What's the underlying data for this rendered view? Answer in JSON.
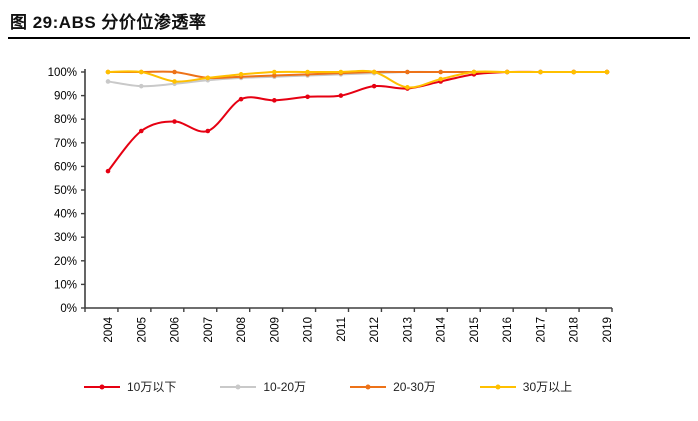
{
  "figure": {
    "title": "图 29:ABS 分价位渗透率"
  },
  "chart_data": {
    "type": "line",
    "title": "ABS 分价位渗透率",
    "categories": [
      "2004",
      "2005",
      "2006",
      "2007",
      "2008",
      "2009",
      "2010",
      "2011",
      "2012",
      "2013",
      "2014",
      "2015",
      "2016",
      "2017",
      "2018",
      "2019"
    ],
    "series": [
      {
        "name": "10万以下",
        "color": "#e60012",
        "values": [
          58,
          75,
          79,
          75,
          88.5,
          88,
          89.5,
          90,
          94,
          93,
          96,
          99,
          100,
          100,
          100,
          100
        ]
      },
      {
        "name": "10-20万",
        "color": "#c9c9c9",
        "values": [
          96,
          94,
          95,
          96.5,
          97.5,
          98,
          98.5,
          99,
          99.5,
          100,
          100,
          100,
          100,
          100,
          100,
          100
        ]
      },
      {
        "name": "20-30万",
        "color": "#ed7218",
        "values": [
          100,
          100,
          100,
          97.5,
          98,
          98.5,
          99,
          99.5,
          100,
          100,
          100,
          100,
          100,
          100,
          100,
          100
        ]
      },
      {
        "name": "30万以上",
        "color": "#ffc000",
        "values": [
          100,
          100,
          96,
          97.5,
          99,
          100,
          100,
          100,
          100,
          93.5,
          97,
          100,
          100,
          100,
          100,
          100
        ]
      }
    ],
    "xlabel": "",
    "ylabel": "",
    "ylim": [
      0,
      100
    ],
    "ytick_step": 10,
    "ytick_format": "percent",
    "grid": false,
    "legend_position": "bottom",
    "axis_color": "#3f3f3f",
    "tick_label_color": "#000000"
  }
}
